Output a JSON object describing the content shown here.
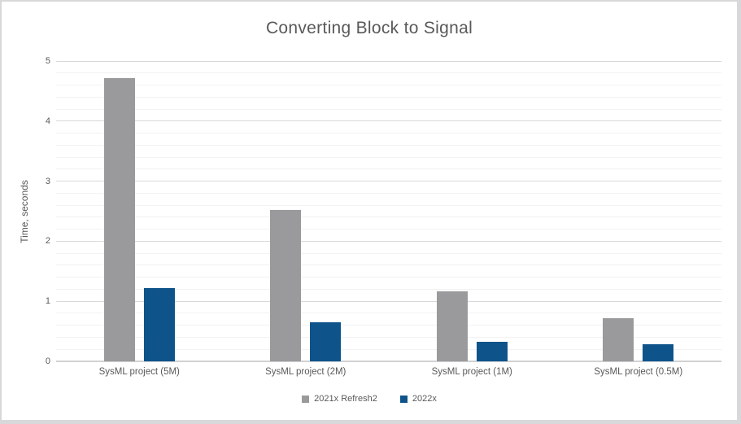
{
  "window": {
    "background": "#ffffff",
    "border_color": "#d8d8da"
  },
  "chart_data": {
    "type": "bar",
    "title": "Converting Block to Signal",
    "xlabel": "",
    "ylabel": "Time, seconds",
    "categories": [
      "SysML project (5M)",
      "SysML project (2M)",
      "SysML project (1M)",
      "SysML project (0.5M)"
    ],
    "series": [
      {
        "name": "2021x Refresh2",
        "color": "#9a9a9c",
        "values": [
          4.71,
          2.52,
          1.16,
          0.72
        ]
      },
      {
        "name": "2022x",
        "color": "#0e548b",
        "values": [
          1.22,
          0.65,
          0.33,
          0.29
        ]
      }
    ],
    "ylim": [
      0,
      5
    ],
    "y_major_unit": 1,
    "y_minor_unit": 0.2,
    "y_tick_labels": [
      "0",
      "1",
      "2",
      "3",
      "4",
      "5"
    ],
    "grid": "major and minor horizontal gridlines",
    "legend_position": "bottom-center",
    "colors": {
      "text": "#595959",
      "major_gridline": "#d9d9d9",
      "minor_gridline": "#f2f2f2",
      "axis_line": "#d2d2d4"
    }
  }
}
